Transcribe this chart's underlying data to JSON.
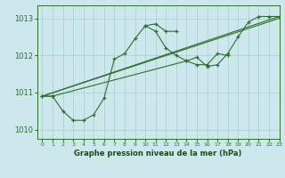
{
  "title": "Graphe pression niveau de la mer (hPa)",
  "bg_color": "#cce8ec",
  "grid_color": "#aacccc",
  "line_color": "#2d6e2d",
  "xlim": [
    -0.5,
    23
  ],
  "ylim": [
    1009.75,
    1013.35
  ],
  "xticks": [
    0,
    1,
    2,
    3,
    4,
    5,
    6,
    7,
    8,
    9,
    10,
    11,
    12,
    13,
    14,
    15,
    16,
    17,
    18,
    19,
    20,
    21,
    22,
    23
  ],
  "yticks": [
    1010,
    1011,
    1012,
    1013
  ],
  "series": [
    {
      "x": [
        0,
        1,
        2,
        3,
        4,
        5,
        6,
        7,
        8,
        9,
        10,
        11,
        12,
        13
      ],
      "y": [
        1010.9,
        1010.9,
        1010.5,
        1010.25,
        1010.25,
        1010.4,
        1010.85,
        1011.9,
        1012.05,
        1012.45,
        1012.8,
        1012.85,
        1012.65,
        1012.65
      ],
      "marker": true
    },
    {
      "x": [
        10,
        11,
        12,
        13,
        14,
        15,
        16,
        17,
        18
      ],
      "y": [
        1012.8,
        1012.65,
        1012.2,
        1012.0,
        1011.85,
        1011.75,
        1011.75,
        1012.05,
        1012.0
      ],
      "marker": true
    },
    {
      "x": [
        0,
        1,
        14,
        15,
        16,
        17,
        18,
        19,
        20,
        21,
        22,
        23
      ],
      "y": [
        1010.9,
        1010.9,
        1011.85,
        1011.95,
        1011.7,
        1011.75,
        1012.05,
        1012.5,
        1012.9,
        1013.05,
        1013.05,
        1013.05
      ],
      "marker": true
    },
    {
      "x": [
        0,
        23
      ],
      "y": [
        1010.9,
        1013.05
      ],
      "marker": false
    },
    {
      "x": [
        0,
        23
      ],
      "y": [
        1010.9,
        1013.0
      ],
      "marker": false
    }
  ]
}
